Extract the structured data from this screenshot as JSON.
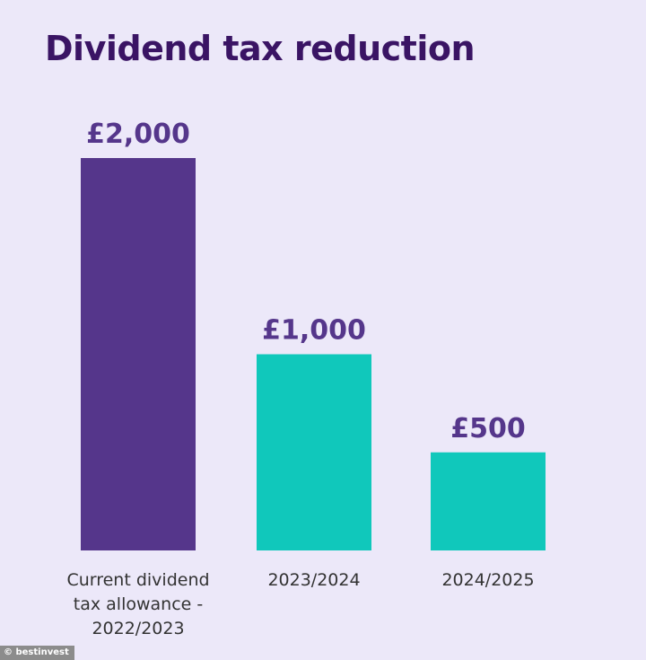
{
  "chart_data": {
    "type": "bar",
    "title": "Dividend tax reduction",
    "categories": [
      "Current dividend tax allowance - 2022/2023",
      "2023/2024",
      "2024/2025"
    ],
    "category_lines": [
      [
        "Current dividend",
        "tax allowance -",
        "2022/2023"
      ],
      [
        "2023/2024"
      ],
      [
        "2024/2025"
      ]
    ],
    "values": [
      2000,
      1000,
      500
    ],
    "value_labels": [
      "£2,000",
      "£1,000",
      "£500"
    ],
    "bar_colors": [
      "#55368b",
      "#10c8bb",
      "#10c8bb"
    ],
    "value_label_color": "#55368b",
    "ylim": [
      0,
      2000
    ],
    "xlabel": "",
    "ylabel": "",
    "grid": false,
    "legend": "none"
  },
  "watermark": "© bestinvest"
}
